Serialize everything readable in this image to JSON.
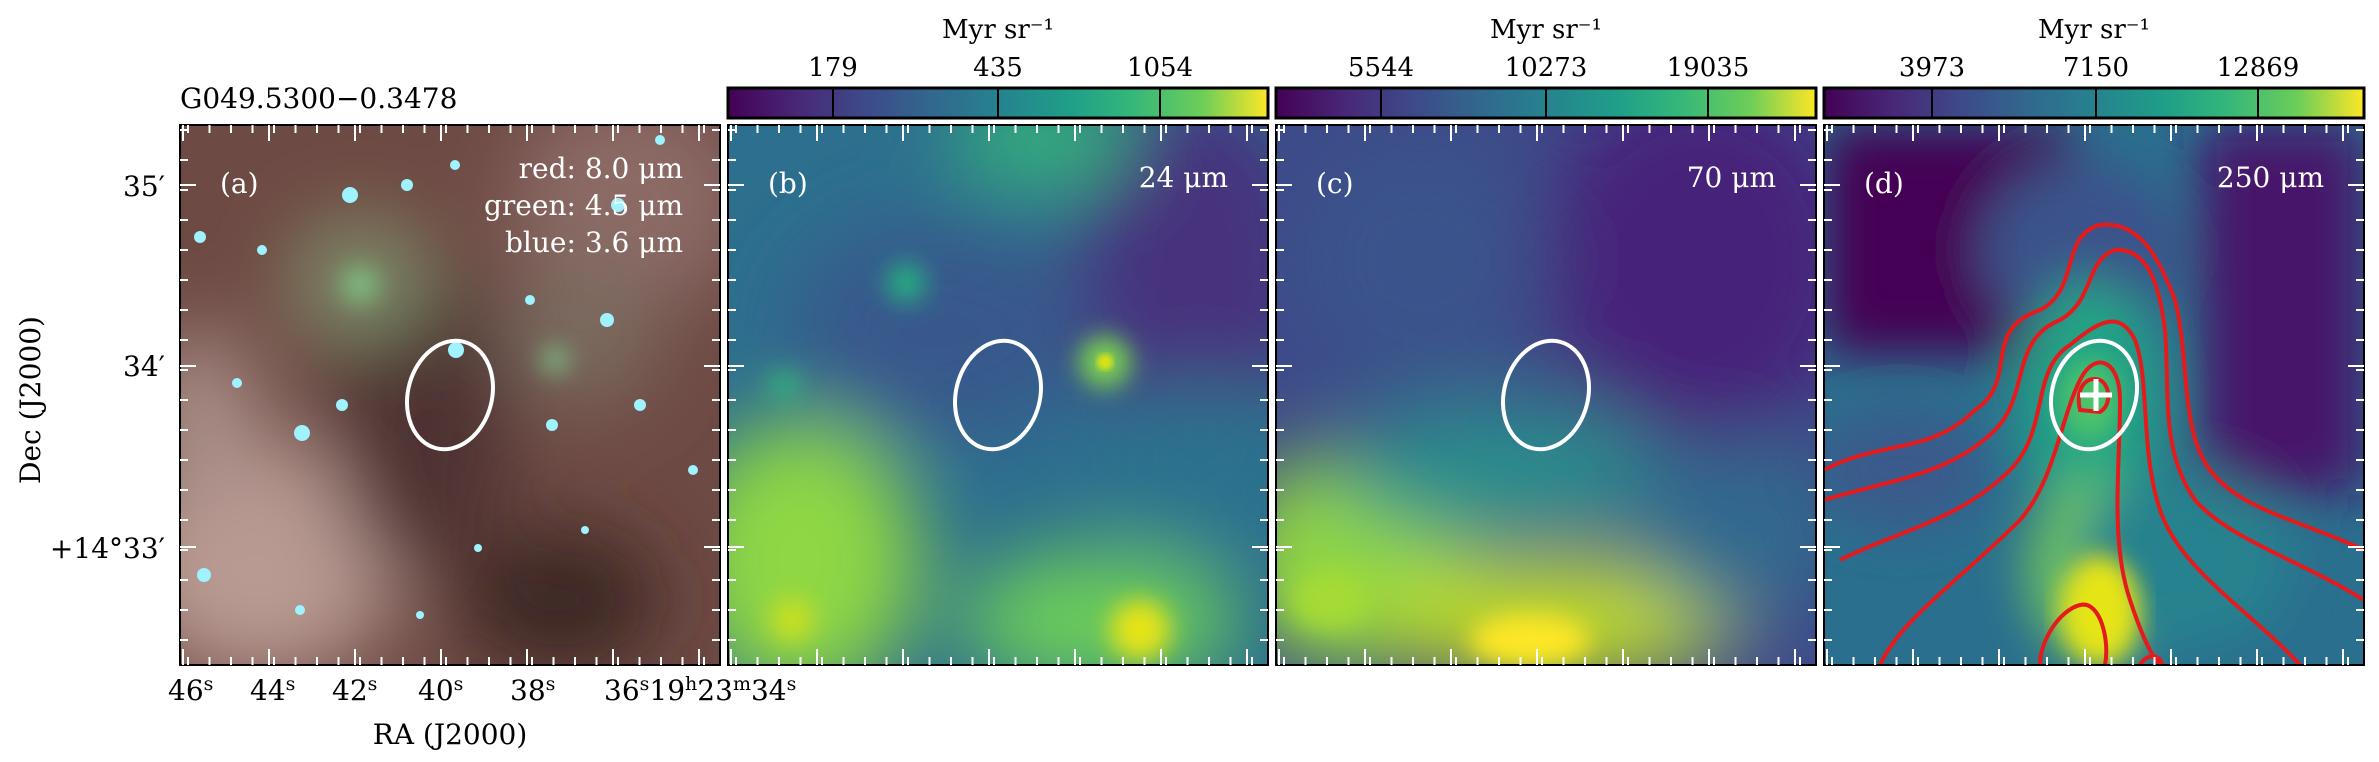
{
  "figure": {
    "source_name": "G049.5300−0.3478",
    "ra_axis_label": "RA (J2000)",
    "dec_axis_label": "Dec (J2000)",
    "ra_ticks": [
      "46",
      "44",
      "42",
      "40",
      "38",
      "36",
      "19",
      "23",
      "34"
    ],
    "ra_tick_suffixes": [
      "s",
      "s",
      "s",
      "s",
      "s",
      "s",
      "h",
      "m",
      "s"
    ],
    "dec_ticks": [
      "35′",
      "34′",
      "+14°33′"
    ],
    "panels": [
      {
        "id": "a",
        "label": "(a)",
        "bands": [
          "red: 8.0 μm",
          "green: 4.5 μm",
          "blue: 3.6 μm"
        ]
      },
      {
        "id": "b",
        "label": "(b)",
        "band": "24 μm",
        "colorbar_unit": "Myr sr⁻¹",
        "colorbar_ticks": [
          "179",
          "435",
          "1054"
        ]
      },
      {
        "id": "c",
        "label": "(c)",
        "band": "70 μm",
        "colorbar_unit": "Myr sr⁻¹",
        "colorbar_ticks": [
          "5544",
          "10273",
          "19035"
        ]
      },
      {
        "id": "d",
        "label": "(d)",
        "band": "250 μm",
        "colorbar_unit": "Myr sr⁻¹",
        "colorbar_ticks": [
          "3973",
          "7150",
          "12869"
        ]
      }
    ],
    "colormap": "viridis",
    "colors": {
      "viridis_dark": "#440154",
      "viridis_mid": "#21918c",
      "viridis_light": "#fde725",
      "contour": "#e41a1c",
      "ellipse": "#ffffff"
    }
  }
}
